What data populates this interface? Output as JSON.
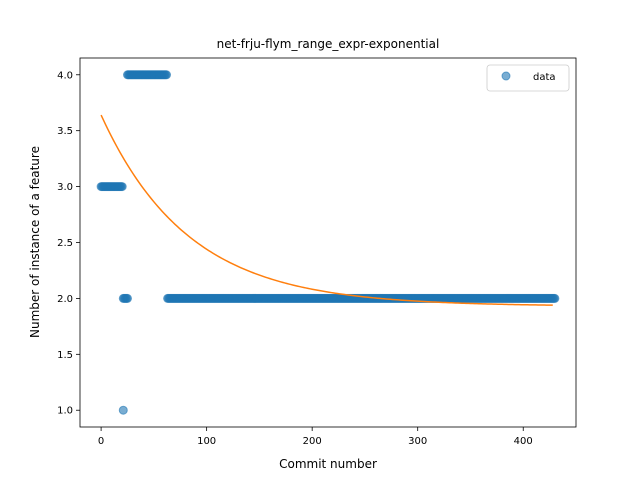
{
  "chart_data": {
    "type": "scatter",
    "title": "net-frju-flym_range_expr-exponential",
    "xlabel": "Commit number",
    "ylabel": "Number of instance of a feature",
    "xlim": [
      -20,
      450
    ],
    "ylim": [
      0.85,
      4.15
    ],
    "xticks": [
      0,
      100,
      200,
      300,
      400
    ],
    "yticks": [
      1.0,
      1.5,
      2.0,
      2.5,
      3.0,
      3.5,
      4.0
    ],
    "grid": false,
    "legend": {
      "placement": "upper right",
      "entries": [
        "data"
      ]
    },
    "colors": {
      "data": "#1f77b4",
      "fit": "#ff7f0e"
    },
    "series": [
      {
        "name": "data",
        "kind": "scatter",
        "segments": [
          {
            "x_start": 0,
            "x_end": 20,
            "y": 3.0
          },
          {
            "x_start": 21,
            "x_end": 21,
            "y": 1.0
          },
          {
            "x_start": 21,
            "x_end": 25,
            "y": 2.0
          },
          {
            "x_start": 25,
            "x_end": 62,
            "y": 4.0
          },
          {
            "x_start": 63,
            "x_end": 430,
            "y": 2.0
          }
        ]
      },
      {
        "kind": "line",
        "fit": {
          "form": "a*exp(-b*x)+c",
          "a": 1.71,
          "b": 0.0121,
          "c": 1.93,
          "x_start": 0,
          "x_end": 428
        }
      }
    ]
  }
}
